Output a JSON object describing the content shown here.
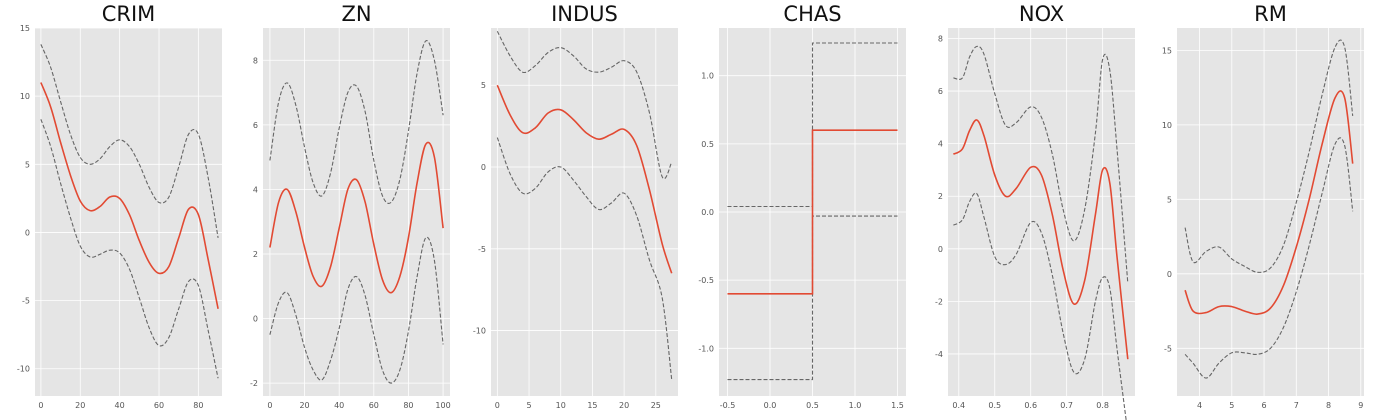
{
  "colors": {
    "mean": "#e24a33",
    "band": "#666666",
    "background": "#e5e5e5",
    "grid": "#ffffff"
  },
  "chart_data": [
    {
      "type": "line",
      "title": "CRIM",
      "grid": true,
      "xlim": [
        -3,
        92
      ],
      "ylim": [
        -12,
        15
      ],
      "xticks": [
        0,
        20,
        40,
        60,
        80
      ],
      "yticks": [
        -10,
        -5,
        0,
        5,
        10,
        15
      ],
      "series": [
        {
          "role": "mean",
          "x": [
            0,
            5,
            10,
            15,
            20,
            25,
            30,
            35,
            40,
            45,
            50,
            55,
            60,
            65,
            70,
            75,
            80,
            85,
            90
          ],
          "y": [
            11,
            9.2,
            6.6,
            4.2,
            2.3,
            1.6,
            1.9,
            2.6,
            2.5,
            1.3,
            -0.6,
            -2.2,
            -3.0,
            -2.5,
            -0.4,
            1.7,
            1.3,
            -2.0,
            -5.6
          ]
        },
        {
          "role": "upper",
          "x": [
            0,
            5,
            10,
            15,
            20,
            25,
            30,
            35,
            40,
            45,
            50,
            55,
            60,
            65,
            70,
            75,
            80,
            85,
            90
          ],
          "y": [
            13.8,
            12.1,
            9.6,
            7.2,
            5.5,
            5.0,
            5.4,
            6.3,
            6.8,
            6.3,
            5.0,
            3.3,
            2.2,
            2.6,
            4.8,
            7.2,
            7.2,
            4.0,
            -0.4
          ]
        },
        {
          "role": "lower",
          "x": [
            0,
            5,
            10,
            15,
            20,
            25,
            30,
            35,
            40,
            45,
            50,
            55,
            60,
            65,
            70,
            75,
            80,
            85,
            90
          ],
          "y": [
            8.3,
            6.3,
            3.6,
            1.1,
            -1.0,
            -1.8,
            -1.6,
            -1.3,
            -1.5,
            -2.7,
            -4.8,
            -7.0,
            -8.3,
            -7.7,
            -5.6,
            -3.6,
            -3.9,
            -7.2,
            -10.7
          ]
        }
      ]
    },
    {
      "type": "line",
      "title": "ZN",
      "grid": true,
      "xlim": [
        -4,
        104
      ],
      "ylim": [
        -2.4,
        9
      ],
      "xticks": [
        0,
        20,
        40,
        60,
        80,
        100
      ],
      "yticks": [
        -2,
        0,
        2,
        4,
        6,
        8
      ],
      "series": [
        {
          "role": "mean",
          "x": [
            0,
            5,
            10,
            15,
            20,
            25,
            30,
            35,
            40,
            45,
            50,
            55,
            60,
            65,
            70,
            75,
            80,
            85,
            90,
            95,
            100
          ],
          "y": [
            2.2,
            3.6,
            4.0,
            3.3,
            2.2,
            1.3,
            1.0,
            1.6,
            2.8,
            4.0,
            4.3,
            3.6,
            2.3,
            1.2,
            0.8,
            1.3,
            2.5,
            4.2,
            5.4,
            5.0,
            2.8
          ]
        },
        {
          "role": "upper",
          "x": [
            0,
            5,
            10,
            15,
            20,
            25,
            30,
            35,
            40,
            45,
            50,
            55,
            60,
            65,
            70,
            75,
            80,
            85,
            90,
            95,
            100
          ],
          "y": [
            4.9,
            6.7,
            7.3,
            6.6,
            5.3,
            4.2,
            3.8,
            4.5,
            5.9,
            7.0,
            7.2,
            6.4,
            4.9,
            3.8,
            3.6,
            4.3,
            5.8,
            7.6,
            8.6,
            8.0,
            6.3
          ]
        },
        {
          "role": "lower",
          "x": [
            0,
            5,
            10,
            15,
            20,
            25,
            30,
            35,
            40,
            45,
            50,
            55,
            60,
            65,
            70,
            75,
            80,
            85,
            90,
            95,
            100
          ],
          "y": [
            -0.5,
            0.5,
            0.8,
            0.1,
            -0.9,
            -1.6,
            -1.9,
            -1.3,
            -0.3,
            0.9,
            1.3,
            0.7,
            -0.5,
            -1.6,
            -2.0,
            -1.6,
            -0.4,
            1.3,
            2.5,
            1.8,
            -0.8
          ]
        }
      ]
    },
    {
      "type": "line",
      "title": "INDUS",
      "grid": true,
      "xlim": [
        -1,
        28.5
      ],
      "ylim": [
        -14,
        8.5
      ],
      "xticks": [
        0,
        5,
        10,
        15,
        20,
        25
      ],
      "yticks": [
        -10,
        -5,
        0,
        5
      ],
      "series": [
        {
          "role": "mean",
          "x": [
            0,
            2,
            4,
            6,
            8,
            10,
            12,
            14,
            16,
            18,
            20,
            22,
            24,
            26,
            27.5
          ],
          "y": [
            5.0,
            3.2,
            2.1,
            2.4,
            3.3,
            3.5,
            2.9,
            2.1,
            1.7,
            2.0,
            2.3,
            1.3,
            -1.4,
            -4.7,
            -6.5
          ]
        },
        {
          "role": "upper",
          "x": [
            0,
            2,
            4,
            6,
            8,
            10,
            12,
            14,
            16,
            18,
            20,
            22,
            24,
            26,
            27.5
          ],
          "y": [
            8.3,
            6.8,
            5.8,
            6.2,
            7.0,
            7.3,
            6.8,
            6.0,
            5.8,
            6.1,
            6.5,
            5.8,
            3.3,
            -0.6,
            0.3
          ]
        },
        {
          "role": "lower",
          "x": [
            0,
            2,
            4,
            6,
            8,
            10,
            12,
            14,
            16,
            18,
            20,
            22,
            24,
            26,
            27.5
          ],
          "y": [
            1.8,
            -0.4,
            -1.6,
            -1.3,
            -0.3,
            0.0,
            -0.8,
            -1.8,
            -2.6,
            -2.2,
            -1.6,
            -3.0,
            -5.7,
            -8.0,
            -13.0
          ]
        }
      ]
    },
    {
      "type": "line",
      "title": "CHAS",
      "grid": true,
      "xlim": [
        -0.6,
        1.6
      ],
      "ylim": [
        -1.35,
        1.35
      ],
      "xticks": [
        -0.5,
        0.0,
        0.5,
        1.0,
        1.5
      ],
      "yticks": [
        -1.0,
        -0.5,
        0.0,
        0.5,
        1.0
      ],
      "series": [
        {
          "role": "mean",
          "x": [
            -0.5,
            0.5,
            0.5,
            1.5
          ],
          "y": [
            -0.6,
            -0.6,
            0.6,
            0.6
          ]
        },
        {
          "role": "upper",
          "x": [
            -0.5,
            0.5,
            0.5,
            1.5
          ],
          "y": [
            0.04,
            0.04,
            1.24,
            1.24
          ]
        },
        {
          "role": "lower",
          "x": [
            -0.5,
            0.5,
            0.5,
            1.5
          ],
          "y": [
            -1.23,
            -1.23,
            -0.03,
            -0.03
          ]
        }
      ]
    },
    {
      "type": "line",
      "title": "NOX",
      "grid": true,
      "xlim": [
        0.37,
        0.89
      ],
      "ylim": [
        -5.6,
        8.4
      ],
      "xticks": [
        0.4,
        0.5,
        0.6,
        0.7,
        0.8
      ],
      "yticks": [
        -4,
        -2,
        0,
        2,
        4,
        6,
        8
      ],
      "series": [
        {
          "role": "mean",
          "x": [
            0.385,
            0.41,
            0.43,
            0.45,
            0.47,
            0.5,
            0.53,
            0.56,
            0.6,
            0.63,
            0.66,
            0.69,
            0.72,
            0.75,
            0.78,
            0.8,
            0.82,
            0.84,
            0.87
          ],
          "y": [
            3.6,
            3.8,
            4.5,
            4.9,
            4.3,
            2.8,
            2.0,
            2.3,
            3.1,
            2.8,
            1.3,
            -0.8,
            -2.1,
            -1.2,
            1.3,
            3.0,
            2.5,
            -0.3,
            -4.2
          ]
        },
        {
          "role": "upper",
          "x": [
            0.385,
            0.41,
            0.43,
            0.45,
            0.47,
            0.5,
            0.53,
            0.56,
            0.6,
            0.63,
            0.66,
            0.69,
            0.72,
            0.75,
            0.78,
            0.8,
            0.82,
            0.84,
            0.87
          ],
          "y": [
            6.5,
            6.5,
            7.3,
            7.7,
            7.4,
            5.9,
            4.7,
            4.8,
            5.4,
            5.0,
            3.6,
            1.5,
            0.3,
            1.5,
            4.4,
            7.2,
            6.8,
            3.8,
            -1.3
          ]
        },
        {
          "role": "lower",
          "x": [
            0.385,
            0.41,
            0.43,
            0.45,
            0.47,
            0.5,
            0.53,
            0.56,
            0.6,
            0.63,
            0.66,
            0.69,
            0.72,
            0.75,
            0.78,
            0.8,
            0.82,
            0.84,
            0.87
          ],
          "y": [
            0.9,
            1.1,
            1.8,
            2.1,
            1.2,
            -0.3,
            -0.6,
            -0.2,
            1.0,
            0.6,
            -1.0,
            -3.2,
            -4.7,
            -4.2,
            -2.0,
            -1.1,
            -1.5,
            -3.8,
            -7.0
          ]
        }
      ]
    },
    {
      "type": "line",
      "title": "RM",
      "grid": true,
      "xlim": [
        3.3,
        9.1
      ],
      "ylim": [
        -8.2,
        16.5
      ],
      "xticks": [
        4,
        5,
        6,
        7,
        8,
        9
      ],
      "yticks": [
        -5,
        0,
        5,
        10,
        15
      ],
      "series": [
        {
          "role": "mean",
          "x": [
            3.55,
            3.8,
            4.2,
            4.6,
            5.0,
            5.4,
            5.8,
            6.2,
            6.6,
            7.0,
            7.4,
            7.8,
            8.2,
            8.5,
            8.75
          ],
          "y": [
            -1.1,
            -2.5,
            -2.6,
            -2.2,
            -2.2,
            -2.5,
            -2.7,
            -2.3,
            -0.8,
            1.8,
            5.0,
            8.7,
            11.8,
            11.8,
            7.4
          ]
        },
        {
          "role": "upper",
          "x": [
            3.55,
            3.8,
            4.2,
            4.6,
            5.0,
            5.4,
            5.8,
            6.2,
            6.6,
            7.0,
            7.4,
            7.8,
            8.2,
            8.5,
            8.75
          ],
          "y": [
            3.1,
            0.8,
            1.5,
            1.8,
            1.0,
            0.5,
            0.1,
            0.4,
            1.9,
            4.8,
            8.2,
            12.0,
            15.2,
            15.2,
            10.6
          ]
        },
        {
          "role": "lower",
          "x": [
            3.55,
            3.8,
            4.2,
            4.6,
            5.0,
            5.4,
            5.8,
            6.2,
            6.6,
            7.0,
            7.4,
            7.8,
            8.2,
            8.5,
            8.75
          ],
          "y": [
            -5.4,
            -6.0,
            -7.0,
            -6.0,
            -5.3,
            -5.3,
            -5.4,
            -5.0,
            -3.6,
            -1.2,
            1.9,
            5.4,
            8.7,
            8.6,
            4.2
          ]
        }
      ]
    }
  ]
}
